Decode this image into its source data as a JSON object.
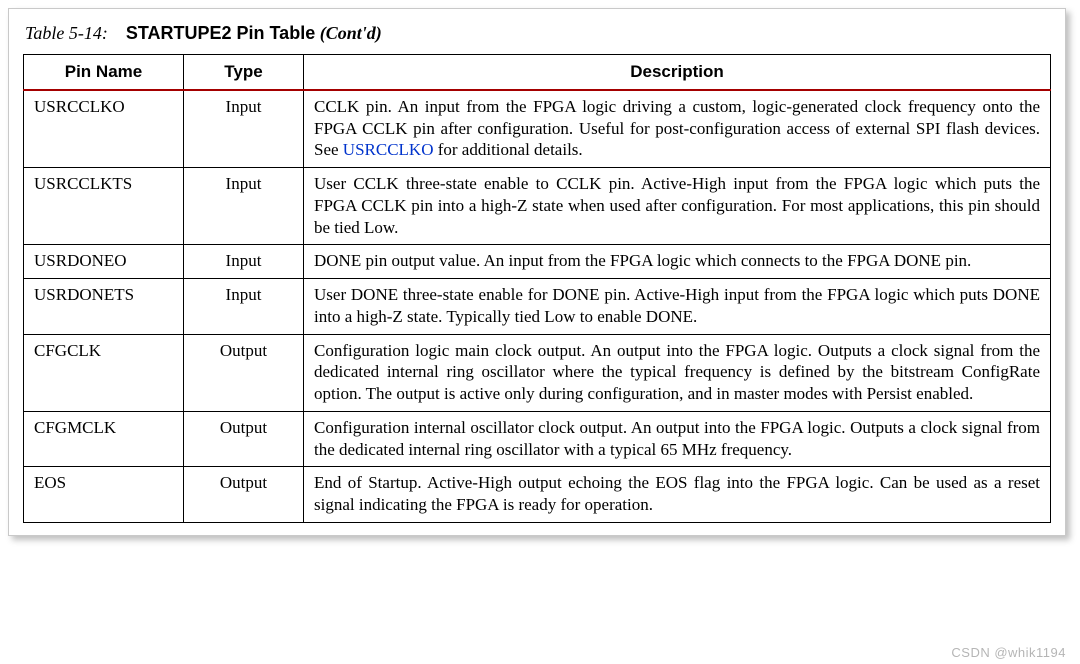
{
  "title": {
    "label": "Table 5-14:",
    "main": "STARTUPE2 Pin Table",
    "contd": "(Cont'd)"
  },
  "columns": {
    "name": "Pin Name",
    "type": "Type",
    "desc": "Description"
  },
  "colors": {
    "header_rule": "#a40000",
    "link": "#0033cc",
    "border": "#000000",
    "sheet_border": "#c9c9c9"
  },
  "link": {
    "text": "USRCCLKO"
  },
  "rows": {
    "usrcclko": {
      "name": "USRCCLKO",
      "type": "Input",
      "desc_a": "CCLK pin. An input from the FPGA logic driving a custom, logic-generated clock frequency onto the FPGA CCLK pin after configuration. Useful for post-configuration access of external SPI flash devices. See ",
      "desc_b": " for additional details."
    },
    "usrcclkts": {
      "name": "USRCCLKTS",
      "type": "Input",
      "desc": "User CCLK three-state enable to CCLK pin. Active-High input from the FPGA logic which puts the FPGA CCLK pin into a high-Z state when used after configuration. For most applications, this pin should be tied Low."
    },
    "usrdoneo": {
      "name": "USRDONEO",
      "type": "Input",
      "desc": "DONE pin output value. An input from the FPGA logic which connects to the FPGA DONE pin."
    },
    "usrdonets": {
      "name": "USRDONETS",
      "type": "Input",
      "desc": "User DONE three-state enable for DONE pin. Active-High input from the FPGA logic which puts DONE into a high-Z state. Typically tied Low to enable DONE."
    },
    "cfgclk": {
      "name": "CFGCLK",
      "type": "Output",
      "desc": "Configuration logic main clock output. An output into the FPGA logic. Outputs a clock signal from the dedicated internal ring oscillator where the typical frequency is defined by the bitstream ConfigRate option. The output is active only during configuration, and in master modes with Persist enabled."
    },
    "cfgmclk": {
      "name": "CFGMCLK",
      "type": "Output",
      "desc": "Configuration internal oscillator clock output. An output into the FPGA logic. Outputs a clock signal from the dedicated internal ring oscillator with a typical 65 MHz frequency."
    },
    "eos": {
      "name": "EOS",
      "type": "Output",
      "desc": "End of Startup. Active-High output echoing the EOS flag into the FPGA logic. Can be used as a reset signal indicating the FPGA is ready for operation."
    }
  },
  "watermark": "CSDN @whik1194"
}
